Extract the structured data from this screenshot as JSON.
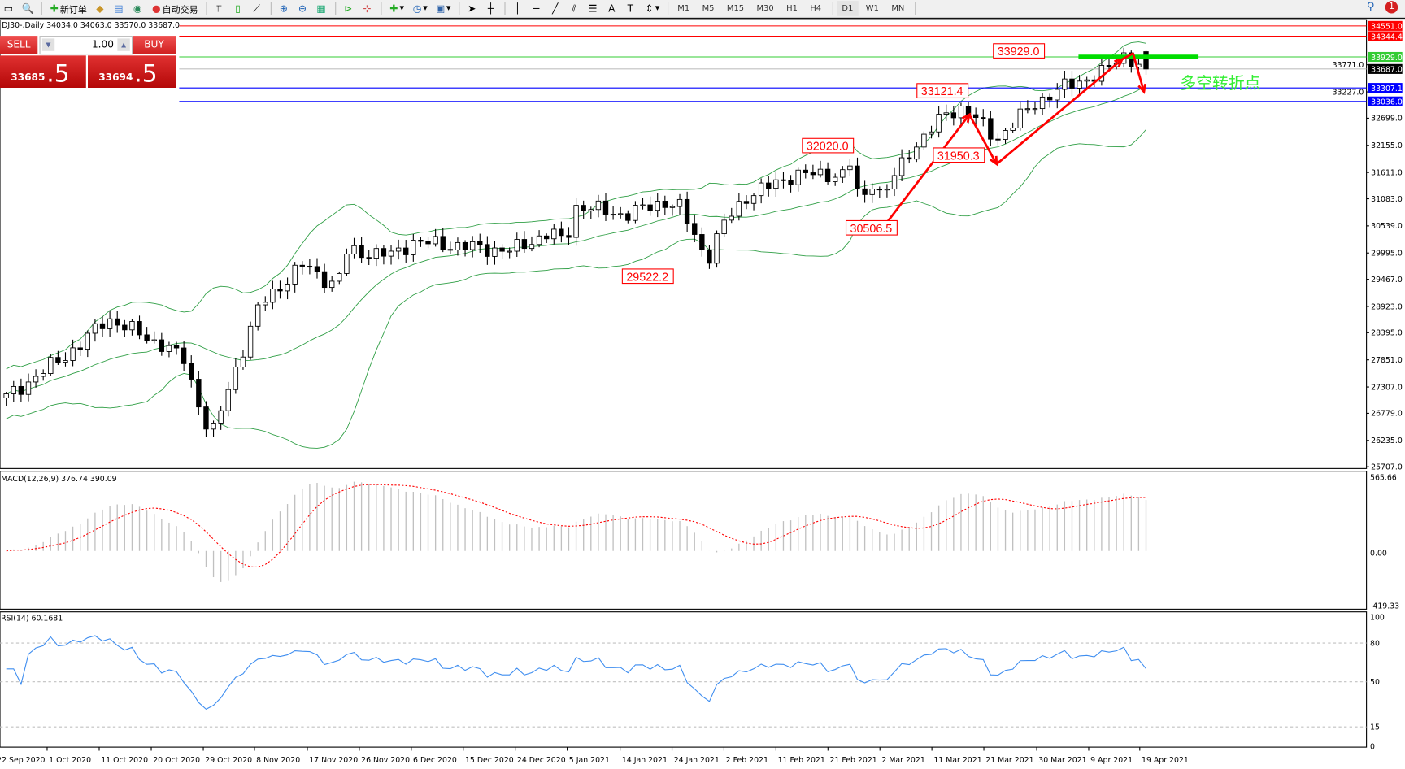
{
  "toolbar": {
    "new_order_label": "新订单",
    "auto_trading_label": "自动交易",
    "timeframes": [
      "M1",
      "M5",
      "M15",
      "M30",
      "H1",
      "H4",
      "D1",
      "W1",
      "MN"
    ],
    "active_timeframe": "D1",
    "notification_count": "1"
  },
  "chart_header": "DJ30-,Daily  34034.0 34063.0 33570.0 33687.0",
  "trade_panel": {
    "sell_label": "SELL",
    "buy_label": "BUY",
    "lot": "1.00",
    "sell_price_main": "33685",
    "sell_price_pip": ".5",
    "buy_price_main": "33694",
    "buy_price_pip": ".5"
  },
  "chart_data": {
    "type": "candlestick",
    "symbol": "DJ30-",
    "timeframe": "Daily",
    "last_bar": {
      "open": 34034.0,
      "high": 34063.0,
      "low": 33570.0,
      "close": 33687.0
    },
    "ylim": [
      25707.0,
      34700.0
    ],
    "price_ticks": [
      "33771.0",
      "33227.0",
      "32699.0",
      "32155.0",
      "31611.0",
      "31083.0",
      "30539.0",
      "29995.0",
      "29467.0",
      "28923.0",
      "28395.0",
      "27851.0",
      "27307.0",
      "26779.0",
      "26235.0",
      "25707.0"
    ],
    "close_path": [
      {
        "date": "2020-09-22",
        "close": 26983
      },
      {
        "date": "2020-09-29",
        "close": 27522
      },
      {
        "date": "2020-10-07",
        "close": 28150
      },
      {
        "date": "2020-10-12",
        "close": 28690
      },
      {
        "date": "2020-10-22",
        "close": 28150
      },
      {
        "date": "2020-10-26",
        "close": 27880
      },
      {
        "date": "2020-10-31",
        "close": 26264
      },
      {
        "date": "2020-11-04",
        "close": 27522
      },
      {
        "date": "2020-11-09",
        "close": 28960
      },
      {
        "date": "2020-11-17",
        "close": 29770
      },
      {
        "date": "2020-11-23",
        "close": 29320
      },
      {
        "date": "2020-11-25",
        "close": 30040
      },
      {
        "date": "2020-12-03",
        "close": 29950
      },
      {
        "date": "2020-12-07",
        "close": 30220
      },
      {
        "date": "2020-12-16",
        "close": 30130
      },
      {
        "date": "2020-12-25",
        "close": 30040
      },
      {
        "date": "2021-01-01",
        "close": 30400
      },
      {
        "date": "2021-01-04",
        "close": 30220
      },
      {
        "date": "2021-01-06",
        "close": 30940
      },
      {
        "date": "2021-01-15",
        "close": 30760
      },
      {
        "date": "2021-01-22",
        "close": 31030
      },
      {
        "date": "2021-01-25",
        "close": 30900
      },
      {
        "date": "2021-01-30",
        "close": 29860
      },
      {
        "date": "2021-02-02",
        "close": 30580
      },
      {
        "date": "2021-02-06",
        "close": 31120
      },
      {
        "date": "2021-02-15",
        "close": 31570
      },
      {
        "date": "2021-02-24",
        "close": 31570
      },
      {
        "date": "2021-02-25",
        "close": 31840
      },
      {
        "date": "2021-02-27",
        "close": 30940
      },
      {
        "date": "2021-03-01",
        "close": 31480
      },
      {
        "date": "2021-03-03",
        "close": 31120
      },
      {
        "date": "2021-03-08",
        "close": 32020
      },
      {
        "date": "2021-03-15",
        "close": 32820
      },
      {
        "date": "2021-03-18",
        "close": 32910
      },
      {
        "date": "2021-03-24",
        "close": 32280
      },
      {
        "date": "2021-03-31",
        "close": 33000
      },
      {
        "date": "2021-04-06",
        "close": 33360
      },
      {
        "date": "2021-04-13",
        "close": 33630
      },
      {
        "date": "2021-04-16",
        "close": 33990
      },
      {
        "date": "2021-04-20",
        "close": 33687
      }
    ],
    "levels": [
      {
        "value": "34551.0",
        "color": "#ff0000"
      },
      {
        "value": "34344.4",
        "color": "#ff0000"
      },
      {
        "value": "33929.0",
        "color": "#33cc33"
      },
      {
        "value": "33687.0",
        "color": "#000000",
        "line": "#c0c0c0"
      },
      {
        "value": "33307.1",
        "color": "#0000ff"
      },
      {
        "value": "33036.0",
        "color": "#0000ff"
      }
    ],
    "annotations": [
      {
        "text": "33929.0",
        "date": "2021-03-28",
        "price": 34050
      },
      {
        "text": "33121.4",
        "date": "2021-03-14",
        "price": 33250
      },
      {
        "text": "32020.0",
        "date": "2021-02-21",
        "price": 32150
      },
      {
        "text": "31950.3",
        "date": "2021-03-17",
        "price": 31960
      },
      {
        "text": "30506.5",
        "date": "2021-03-01",
        "price": 30500
      },
      {
        "text": "29522.2",
        "date": "2021-01-19",
        "price": 29530
      }
    ],
    "trend_arrow_points": [
      {
        "date": "2021-03-03",
        "price": 30480
      },
      {
        "date": "2021-03-19",
        "price": 32770
      },
      {
        "date": "2021-03-24",
        "price": 31780
      },
      {
        "date": "2021-04-16",
        "price": 33880
      },
      {
        "date": "2021-04-18",
        "price": 34000
      },
      {
        "date": "2021-04-20",
        "price": 33230
      }
    ],
    "zone_marker": {
      "price": 33929.0,
      "from": "2021-04-08",
      "to": "2021-04-30",
      "color": "#00dd00"
    },
    "zone_label": "多空转折点",
    "bollinger": {
      "period": 20,
      "deviation": 2,
      "color": "#2e9e44"
    },
    "macd": {
      "label": "MACD(12,26,9) 376.74 390.09",
      "ticks": [
        "565.66",
        "0.00",
        "-419.33"
      ],
      "range": [
        -419.33,
        565.66
      ],
      "signal_color": "#ff0000",
      "hist_color": "#c0c0c0"
    },
    "rsi": {
      "label": "RSI(14) 60.1681",
      "ticks": [
        "100",
        "80",
        "50",
        "15",
        "0"
      ],
      "levels": [
        80,
        50,
        15
      ],
      "color": "#3f8ef0"
    },
    "date_ticks": [
      "22 Sep 2020",
      "1 Oct 2020",
      "11 Oct 2020",
      "20 Oct 2020",
      "29 Oct 2020",
      "8 Nov 2020",
      "17 Nov 2020",
      "26 Nov 2020",
      "6 Dec 2020",
      "15 Dec 2020",
      "24 Dec 2020",
      "5 Jan 2021",
      "14 Jan 2021",
      "24 Jan 2021",
      "2 Feb 2021",
      "11 Feb 2021",
      "21 Feb 2021",
      "2 Mar 2021",
      "11 Mar 2021",
      "21 Mar 2021",
      "30 Mar 2021",
      "9 Apr 2021",
      "19 Apr 2021"
    ]
  }
}
